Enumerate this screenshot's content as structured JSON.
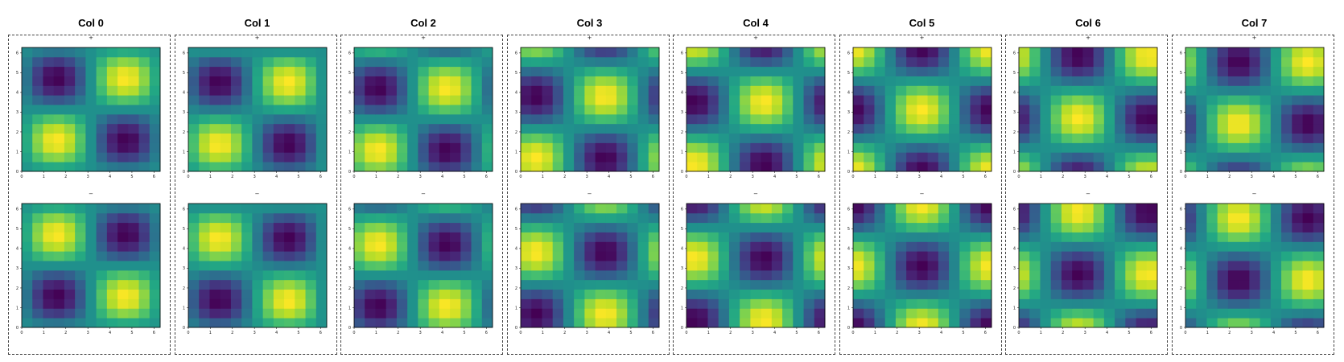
{
  "chart_data": {
    "type": "heatmap",
    "colormap": "viridis",
    "grid": false,
    "x_ticks": [
      "0",
      "1",
      "2",
      "3",
      "4",
      "5",
      "6"
    ],
    "y_ticks": [
      "0",
      "1",
      "2",
      "3",
      "4",
      "5",
      "6"
    ],
    "xlim": [
      0,
      6.28
    ],
    "ylim": [
      0,
      6.28
    ],
    "value_range": [
      -1,
      1
    ],
    "resolution": 13,
    "function": "sign * sin(x + phase) * sin(y + phase)",
    "columns": [
      {
        "title": "Col 0",
        "phase": 0.0
      },
      {
        "title": "Col 1",
        "phase": 0.2
      },
      {
        "title": "Col 2",
        "phase": 0.5
      },
      {
        "title": "Col 3",
        "phase": 0.9
      },
      {
        "title": "Col 4",
        "phase": 1.2
      },
      {
        "title": "Col 5",
        "phase": 1.6
      },
      {
        "title": "Col 6",
        "phase": 2.0
      },
      {
        "title": "Col 7",
        "phase": 2.3
      }
    ],
    "rows": [
      {
        "title": "+",
        "sign": 1
      },
      {
        "title": "−",
        "sign": -1
      }
    ]
  }
}
